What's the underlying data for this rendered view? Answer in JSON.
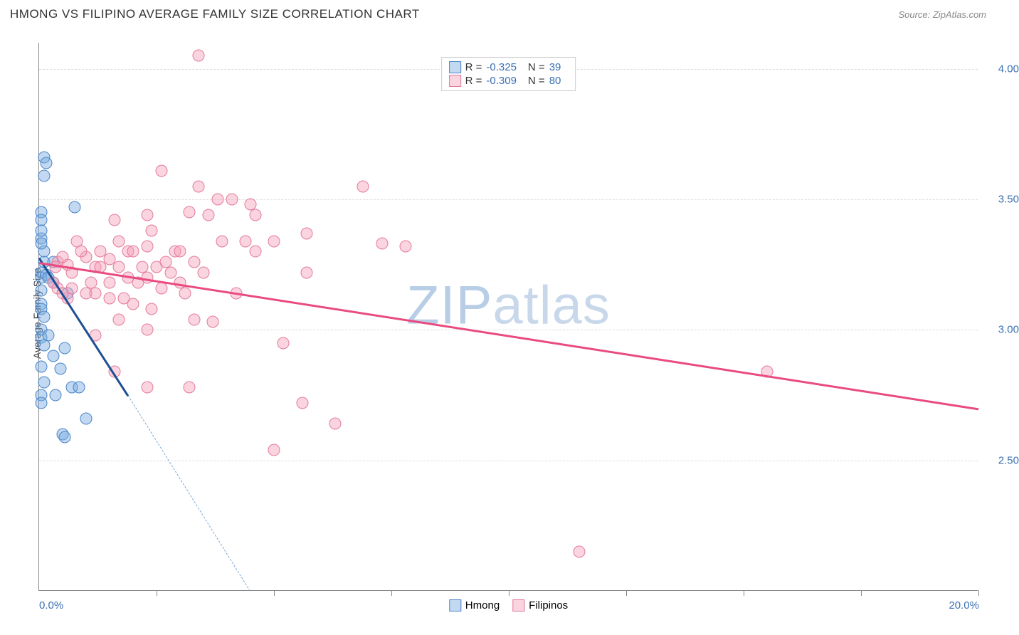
{
  "header": {
    "title": "HMONG VS FILIPINO AVERAGE FAMILY SIZE CORRELATION CHART",
    "source": "Source: ZipAtlas.com"
  },
  "watermark": {
    "part1": "ZIP",
    "part2": "atlas"
  },
  "chart": {
    "type": "scatter",
    "background_color": "#ffffff",
    "grid_color": "#dddddd",
    "axis_color": "#888888",
    "y_title": "Average Family Size",
    "xlim": [
      0,
      20
    ],
    "ylim": [
      2.0,
      4.1
    ],
    "yticks": [
      2.5,
      3.0,
      3.5,
      4.0
    ],
    "ytick_labels": [
      "2.50",
      "3.00",
      "3.50",
      "4.00"
    ],
    "xticks": [
      2.5,
      5.0,
      7.5,
      10.0,
      12.5,
      15.0,
      17.5,
      20.0
    ],
    "x_left_label": "0.0%",
    "x_right_label": "20.0%",
    "ytick_label_color": "#3b6fb5",
    "xlabel_color": "#3b6fb5",
    "marker_radius": 8.5,
    "marker_stroke_width": 1,
    "series": [
      {
        "name": "Hmong",
        "fill_color": "rgba(120,170,225,0.45)",
        "stroke_color": "#4a85c9",
        "reg_color": "#1d4f91",
        "reg_dash_color": "#7aa8d8",
        "stats": {
          "R": "-0.325",
          "N": "39"
        },
        "regression": {
          "x1": 0.0,
          "y1": 3.28,
          "x2": 1.9,
          "y2": 2.75,
          "extend_x2": 4.5,
          "extend_y2": 2.0
        },
        "points": [
          [
            0.1,
            3.66
          ],
          [
            0.15,
            3.64
          ],
          [
            0.1,
            3.59
          ],
          [
            0.75,
            3.47
          ],
          [
            0.05,
            3.45
          ],
          [
            0.05,
            3.42
          ],
          [
            0.05,
            3.35
          ],
          [
            0.1,
            3.3
          ],
          [
            0.05,
            3.22
          ],
          [
            0.05,
            3.2
          ],
          [
            0.1,
            3.26
          ],
          [
            0.15,
            3.21
          ],
          [
            0.05,
            3.15
          ],
          [
            0.2,
            3.2
          ],
          [
            0.05,
            3.1
          ],
          [
            0.05,
            3.08
          ],
          [
            0.1,
            3.05
          ],
          [
            0.6,
            3.14
          ],
          [
            0.05,
            3.0
          ],
          [
            0.05,
            2.97
          ],
          [
            0.1,
            2.94
          ],
          [
            0.2,
            2.98
          ],
          [
            0.05,
            2.86
          ],
          [
            0.45,
            2.85
          ],
          [
            0.1,
            2.8
          ],
          [
            0.7,
            2.78
          ],
          [
            0.85,
            2.78
          ],
          [
            0.55,
            2.93
          ],
          [
            0.3,
            2.9
          ],
          [
            0.05,
            2.75
          ],
          [
            0.05,
            2.72
          ],
          [
            0.35,
            2.75
          ],
          [
            1.0,
            2.66
          ],
          [
            0.5,
            2.6
          ],
          [
            0.55,
            2.59
          ],
          [
            0.05,
            3.38
          ],
          [
            0.05,
            3.33
          ],
          [
            0.3,
            3.26
          ],
          [
            0.3,
            3.18
          ]
        ]
      },
      {
        "name": "Filipinos",
        "fill_color": "rgba(245,160,185,0.45)",
        "stroke_color": "#e47a9c",
        "reg_color": "#e94b80",
        "reg_dash_color": "#f0a0b8",
        "stats": {
          "R": "-0.309",
          "N": "80"
        },
        "regression": {
          "x1": 0.0,
          "y1": 3.26,
          "x2": 20.0,
          "y2": 2.7
        },
        "points": [
          [
            3.4,
            4.05
          ],
          [
            2.6,
            3.61
          ],
          [
            3.4,
            3.55
          ],
          [
            6.9,
            3.55
          ],
          [
            3.8,
            3.5
          ],
          [
            4.1,
            3.5
          ],
          [
            4.5,
            3.48
          ],
          [
            2.3,
            3.44
          ],
          [
            3.2,
            3.45
          ],
          [
            3.6,
            3.44
          ],
          [
            4.6,
            3.44
          ],
          [
            1.6,
            3.42
          ],
          [
            2.4,
            3.38
          ],
          [
            5.7,
            3.37
          ],
          [
            3.9,
            3.34
          ],
          [
            4.4,
            3.34
          ],
          [
            5.0,
            3.34
          ],
          [
            7.3,
            3.33
          ],
          [
            2.3,
            3.32
          ],
          [
            2.9,
            3.3
          ],
          [
            4.6,
            3.3
          ],
          [
            7.8,
            3.32
          ],
          [
            0.4,
            3.26
          ],
          [
            0.6,
            3.25
          ],
          [
            0.7,
            3.22
          ],
          [
            1.0,
            3.28
          ],
          [
            1.2,
            3.24
          ],
          [
            1.1,
            3.18
          ],
          [
            1.3,
            3.24
          ],
          [
            1.5,
            3.27
          ],
          [
            1.7,
            3.34
          ],
          [
            1.5,
            3.18
          ],
          [
            1.7,
            3.24
          ],
          [
            1.9,
            3.3
          ],
          [
            1.9,
            3.2
          ],
          [
            2.0,
            3.3
          ],
          [
            2.2,
            3.24
          ],
          [
            2.1,
            3.18
          ],
          [
            2.3,
            3.2
          ],
          [
            2.5,
            3.24
          ],
          [
            2.7,
            3.26
          ],
          [
            2.6,
            3.16
          ],
          [
            2.8,
            3.22
          ],
          [
            3.0,
            3.3
          ],
          [
            3.0,
            3.18
          ],
          [
            3.1,
            3.14
          ],
          [
            3.3,
            3.26
          ],
          [
            3.5,
            3.22
          ],
          [
            3.7,
            3.03
          ],
          [
            4.2,
            3.14
          ],
          [
            5.7,
            3.22
          ],
          [
            1.0,
            3.14
          ],
          [
            1.2,
            3.14
          ],
          [
            0.6,
            3.12
          ],
          [
            0.7,
            3.16
          ],
          [
            0.3,
            3.18
          ],
          [
            0.4,
            3.16
          ],
          [
            0.5,
            3.14
          ],
          [
            1.5,
            3.12
          ],
          [
            1.8,
            3.12
          ],
          [
            2.0,
            3.1
          ],
          [
            2.4,
            3.08
          ],
          [
            1.7,
            3.04
          ],
          [
            2.3,
            3.0
          ],
          [
            3.3,
            3.04
          ],
          [
            1.2,
            2.98
          ],
          [
            1.6,
            2.84
          ],
          [
            2.3,
            2.78
          ],
          [
            3.2,
            2.78
          ],
          [
            5.0,
            2.54
          ],
          [
            5.2,
            2.95
          ],
          [
            5.6,
            2.72
          ],
          [
            6.3,
            2.64
          ],
          [
            15.5,
            2.84
          ],
          [
            11.5,
            2.15
          ],
          [
            0.9,
            3.3
          ],
          [
            1.3,
            3.3
          ],
          [
            0.8,
            3.34
          ],
          [
            0.5,
            3.28
          ],
          [
            0.35,
            3.24
          ]
        ]
      }
    ]
  },
  "stats_box": {
    "R_label": "R =",
    "N_label": "N ="
  },
  "legend": {
    "items": [
      {
        "name": "Hmong",
        "fill": "rgba(120,170,225,0.45)",
        "stroke": "#4a85c9"
      },
      {
        "name": "Filipinos",
        "fill": "rgba(245,160,185,0.45)",
        "stroke": "#e47a9c"
      }
    ]
  }
}
